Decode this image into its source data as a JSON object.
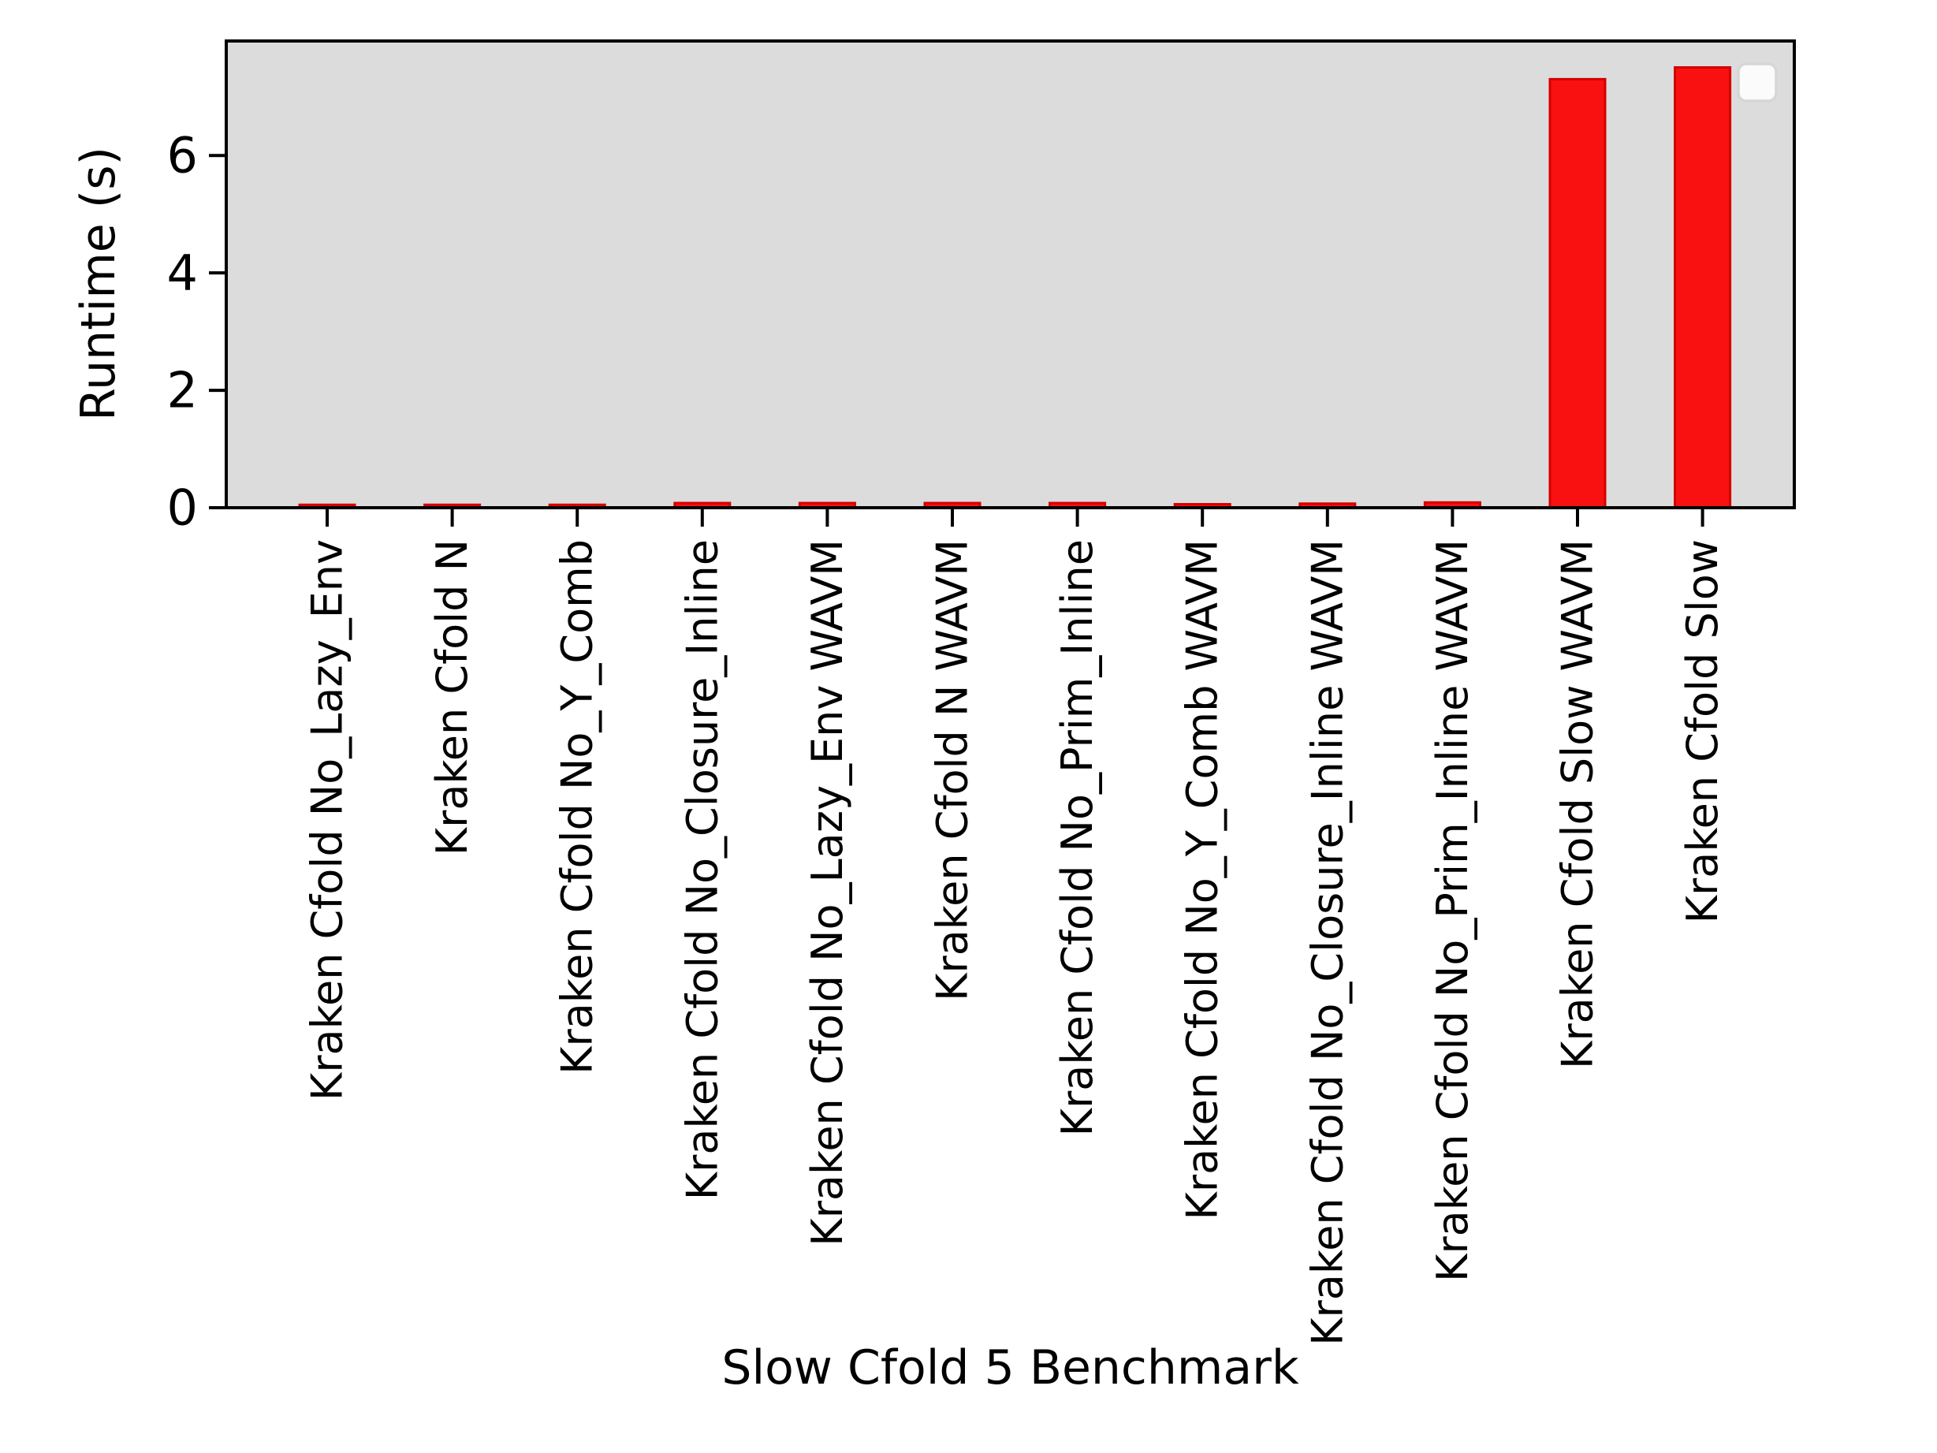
{
  "page": {
    "background": "#ffffff"
  },
  "chart_data": {
    "type": "bar",
    "title": "",
    "xlabel": "Slow Cfold 5 Benchmark",
    "ylabel": "Runtime (s)",
    "categories": [
      "Kraken Cfold No_Lazy_Env",
      "Kraken Cfold N",
      "Kraken Cfold No_Y_Comb",
      "Kraken Cfold No_Closure_Inline",
      "Kraken Cfold No_Lazy_Env WAVM",
      "Kraken Cfold N WAVM",
      "Kraken Cfold No_Prim_Inline",
      "Kraken Cfold No_Y_Comb WAVM",
      "Kraken Cfold No_Closure_Inline WAVM",
      "Kraken Cfold No_Prim_Inline WAVM",
      "Kraken Cfold Slow WAVM",
      "Kraken Cfold Slow"
    ],
    "values": [
      0.05,
      0.05,
      0.05,
      0.08,
      0.08,
      0.08,
      0.08,
      0.06,
      0.07,
      0.09,
      7.3,
      7.5
    ],
    "yticks": [
      0,
      2,
      4,
      6
    ],
    "ylim": [
      0,
      7.95
    ],
    "grid": false,
    "legend_position": "upper right",
    "legend_entries": [],
    "colors": {
      "bar_fill": "#f91010",
      "bar_edge": "#d40000",
      "plot_background": "#dcdcdc",
      "axis": "#000000",
      "text": "#000000",
      "legend_fill": "#fbfbfb",
      "legend_edge": "#d6d6d6"
    }
  }
}
